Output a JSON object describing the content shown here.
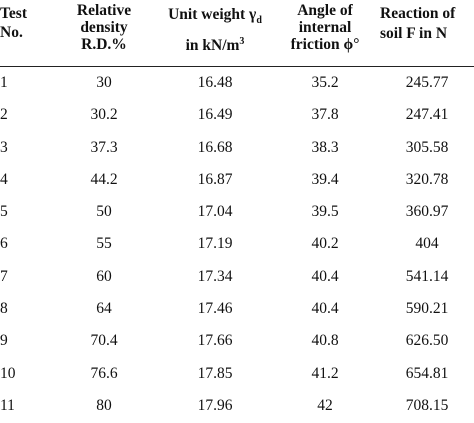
{
  "header": {
    "test": [
      "Test",
      "No."
    ],
    "relative_density": [
      "Relative",
      "density",
      "R.D.%"
    ],
    "unit_weight_line1": "Unit weight γ",
    "unit_weight_sub": "d",
    "unit_weight_line2": "in kN/m",
    "unit_weight_sup": "3",
    "angle": [
      "Angle of",
      "internal",
      "friction ϕ°"
    ],
    "reaction": [
      "Reaction of",
      "soil F in N"
    ]
  },
  "rows": [
    {
      "test": "1",
      "rd": "30",
      "uw": "16.48",
      "angle": "35.2",
      "reaction": "245.77"
    },
    {
      "test": "2",
      "rd": "30.2",
      "uw": "16.49",
      "angle": "37.8",
      "reaction": "247.41"
    },
    {
      "test": "3",
      "rd": "37.3",
      "uw": "16.68",
      "angle": "38.3",
      "reaction": "305.58"
    },
    {
      "test": "4",
      "rd": "44.2",
      "uw": "16.87",
      "angle": "39.4",
      "reaction": "320.78"
    },
    {
      "test": "5",
      "rd": "50",
      "uw": "17.04",
      "angle": "39.5",
      "reaction": "360.97"
    },
    {
      "test": "6",
      "rd": "55",
      "uw": "17.19",
      "angle": "40.2",
      "reaction": "404"
    },
    {
      "test": "7",
      "rd": "60",
      "uw": "17.34",
      "angle": "40.4",
      "reaction": "541.14"
    },
    {
      "test": "8",
      "rd": "64",
      "uw": "17.46",
      "angle": "40.4",
      "reaction": "590.21"
    },
    {
      "test": "9",
      "rd": "70.4",
      "uw": "17.66",
      "angle": "40.8",
      "reaction": "626.50"
    },
    {
      "test": "10",
      "rd": "76.6",
      "uw": "17.85",
      "angle": "41.2",
      "reaction": "654.81"
    },
    {
      "test": "11",
      "rd": "80",
      "uw": "17.96",
      "angle": "42",
      "reaction": "708.15"
    }
  ]
}
